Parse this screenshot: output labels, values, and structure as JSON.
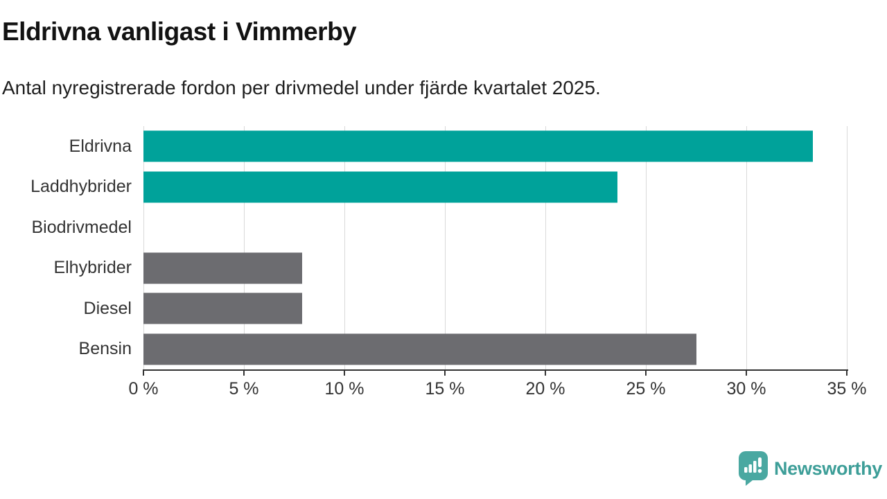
{
  "header": {
    "title": "Eldrivna vanligast i Vimmerby",
    "subtitle": "Antal nyregistrerade fordon per drivmedel under fjärde kvartalet 2025."
  },
  "chart_data": {
    "type": "bar",
    "orientation": "horizontal",
    "title": "Eldrivna vanligast i Vimmerby",
    "subtitle": "Antal nyregistrerade fordon per drivmedel under fjärde kvartalet 2025.",
    "categories": [
      "Eldrivna",
      "Laddhybrider",
      "Biodrivmedel",
      "Elhybrider",
      "Diesel",
      "Bensin"
    ],
    "values": [
      33.3,
      23.6,
      0,
      7.9,
      7.9,
      27.5
    ],
    "unit": "%",
    "xlabel": "",
    "ylabel": "",
    "xlim": [
      0,
      35
    ],
    "x_ticks": [
      0,
      5,
      10,
      15,
      20,
      25,
      30,
      35
    ],
    "x_tick_suffix": " %",
    "grid": "vertical-only",
    "legend": "none",
    "highlighted": [
      true,
      true,
      false,
      false,
      false,
      false
    ],
    "highlight_color": "#00a29a",
    "default_color": "#6c6c70"
  },
  "footer": {
    "brand": "Newsworthy",
    "brand_color": "#3d9e98",
    "logo_icon": "speech-bubble-bar-chart-icon"
  },
  "colors": {
    "background": "#ffffff",
    "title_text": "#121212",
    "label_text": "#333333",
    "axis": "#333333",
    "gridline": "#d9d9d9"
  }
}
